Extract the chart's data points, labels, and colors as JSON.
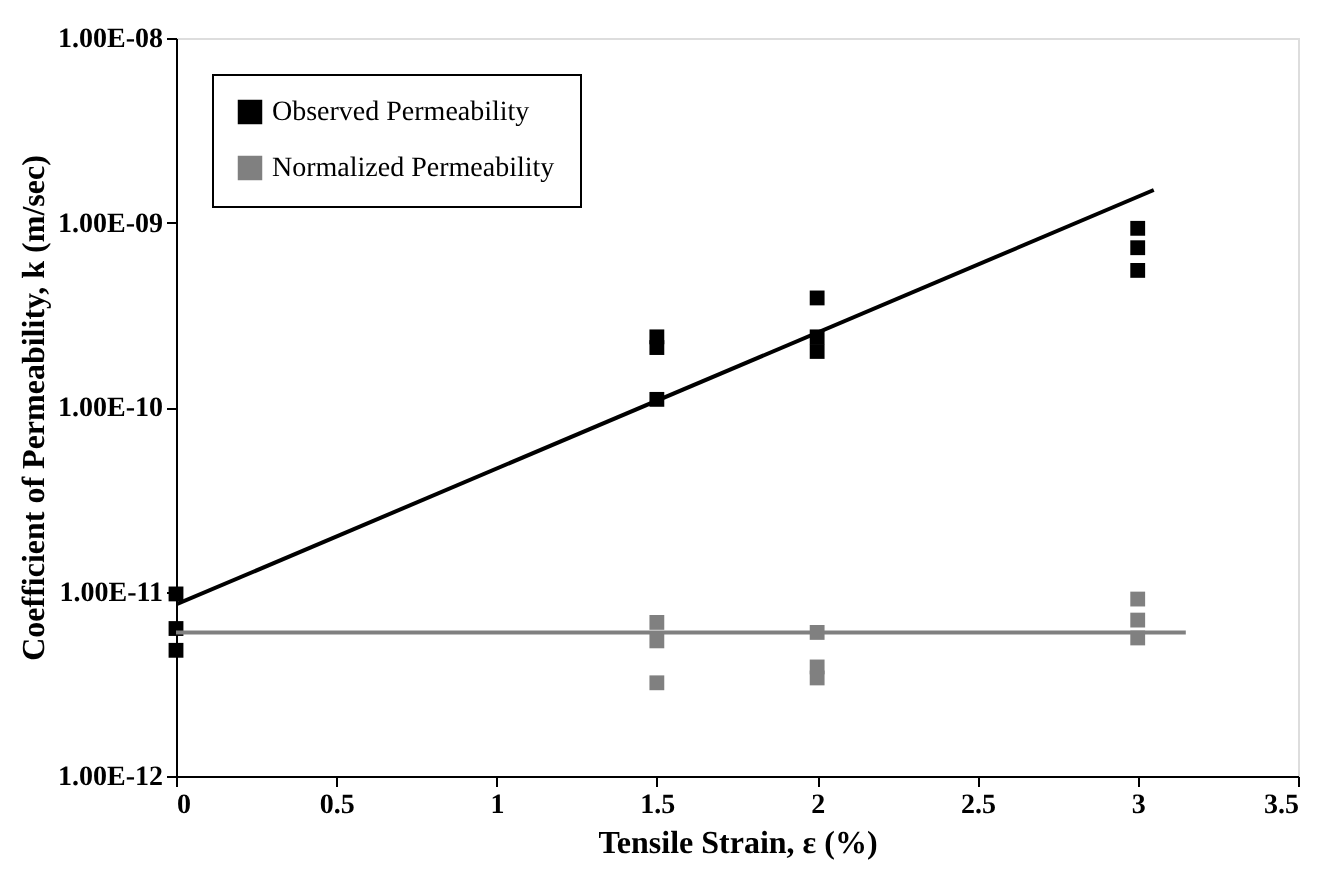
{
  "chart_data": {
    "type": "scatter",
    "xlabel": "Tensile Strain, ε (%)",
    "ylabel": "Coefficient of Permeability, k (m/sec)",
    "xlim": [
      0,
      3.5
    ],
    "xticks": [
      0,
      0.5,
      1,
      1.5,
      2,
      2.5,
      3,
      3.5
    ],
    "ylim": [
      1e-12,
      1e-08
    ],
    "yticks": [
      {
        "value": 1e-12,
        "label": "1.00E-12"
      },
      {
        "value": 1e-11,
        "label": "1.00E-11"
      },
      {
        "value": 1e-10,
        "label": "1.00E-10"
      },
      {
        "value": 1e-09,
        "label": "1.00E-09"
      },
      {
        "value": 1e-08,
        "label": "1.00E-08"
      }
    ],
    "log": "y",
    "grid": false,
    "legend": "top left",
    "marker": "square",
    "series": [
      {
        "name": "Observed Permeability",
        "color": "#000000",
        "x": [
          0,
          0,
          0,
          1.5,
          1.5,
          1.5,
          2,
          2,
          2,
          3,
          3,
          3
        ],
        "values": [
          9.7e-12,
          6.3e-12,
          4.8e-12,
          2.4e-10,
          2.1e-10,
          1.1e-10,
          3.9e-10,
          2.4e-10,
          2e-10,
          9.3e-10,
          7.3e-10,
          5.5e-10
        ]
      },
      {
        "name": "Normalized Permeability",
        "color": "#808080",
        "x": [
          1.5,
          1.5,
          1.5,
          2,
          2,
          2,
          3,
          3,
          3
        ],
        "values": [
          6.8e-12,
          5.4e-12,
          3.2e-12,
          6e-12,
          3.9e-12,
          3.4e-12,
          9.1e-12,
          7e-12,
          5.6e-12
        ]
      },
      {
        "type": "line",
        "marker": "none",
        "color": "#000000",
        "x": [
          0,
          3.05
        ],
        "values": [
          8.5e-12,
          1.5e-09
        ]
      },
      {
        "type": "line",
        "marker": "none",
        "color": "#808080",
        "x": [
          0,
          3.15
        ],
        "values": [
          6e-12,
          6e-12
        ]
      }
    ]
  }
}
